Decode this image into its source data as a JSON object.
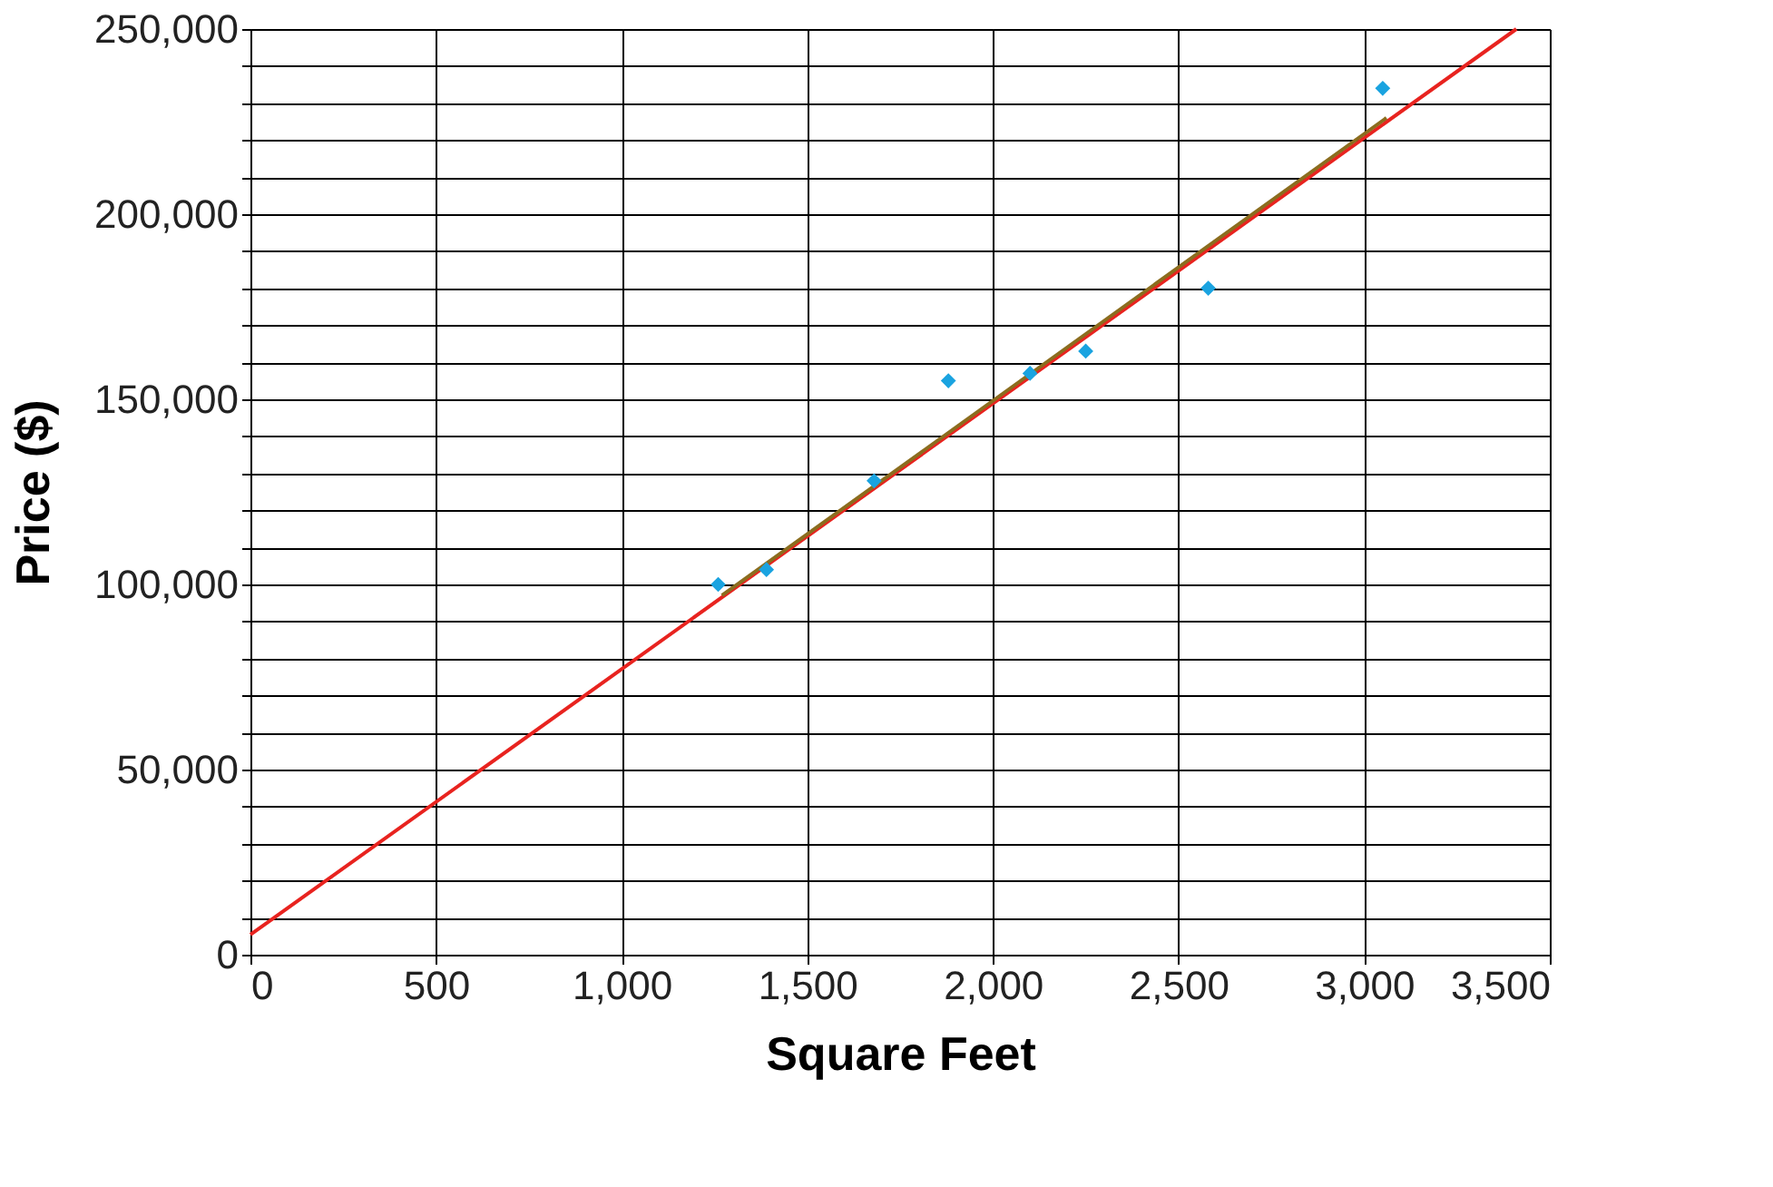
{
  "chart_data": {
    "type": "scatter",
    "xlabel": "Square Feet",
    "ylabel": "Price ($)",
    "xlim": [
      0,
      3500
    ],
    "ylim": [
      0,
      250000
    ],
    "xticks": [
      0,
      500,
      {
        "value": 1000,
        "label": "1,000"
      },
      {
        "value": 1500,
        "label": "1,500"
      },
      {
        "value": 2000,
        "label": "2,000"
      },
      {
        "value": 2500,
        "label": "2,500"
      },
      {
        "value": 3000,
        "label": "3,000"
      },
      {
        "value": 3500,
        "label": "3,500"
      }
    ],
    "yticks": [
      0,
      {
        "value": 10000,
        "label": null
      },
      {
        "value": 20000,
        "label": null
      },
      {
        "value": 30000,
        "label": null
      },
      {
        "value": 40000,
        "label": null
      },
      {
        "value": 50000,
        "label": "50,000"
      },
      {
        "value": 60000,
        "label": null
      },
      {
        "value": 70000,
        "label": null
      },
      {
        "value": 80000,
        "label": null
      },
      {
        "value": 90000,
        "label": null
      },
      {
        "value": 100000,
        "label": "100,000"
      },
      {
        "value": 110000,
        "label": null
      },
      {
        "value": 120000,
        "label": null
      },
      {
        "value": 130000,
        "label": null
      },
      {
        "value": 140000,
        "label": null
      },
      {
        "value": 150000,
        "label": "150,000"
      },
      {
        "value": 160000,
        "label": null
      },
      {
        "value": 170000,
        "label": null
      },
      {
        "value": 180000,
        "label": null
      },
      {
        "value": 190000,
        "label": null
      },
      {
        "value": 200000,
        "label": "200,000"
      },
      {
        "value": 210000,
        "label": null
      },
      {
        "value": 220000,
        "label": null
      },
      {
        "value": 230000,
        "label": null
      },
      {
        "value": 240000,
        "label": null
      },
      {
        "value": 250000,
        "label": "250,000"
      }
    ],
    "grid": true,
    "series": [
      {
        "marker": "diamond",
        "color": "#1aa3e0",
        "x": [
          1260,
          1390,
          1680,
          1880,
          2100,
          2250,
          2580,
          3050
        ],
        "values": [
          100000,
          104000,
          128000,
          155000,
          157000,
          163000,
          180000,
          234000
        ]
      },
      {
        "type": "line",
        "color": "#e8231f",
        "x": [
          0,
          3410
        ],
        "values": [
          5400,
          250000
        ]
      },
      {
        "type": "line",
        "color": "#8b6d1e",
        "x": [
          1270,
          3060
        ],
        "values": [
          97000,
          226000
        ]
      }
    ]
  }
}
